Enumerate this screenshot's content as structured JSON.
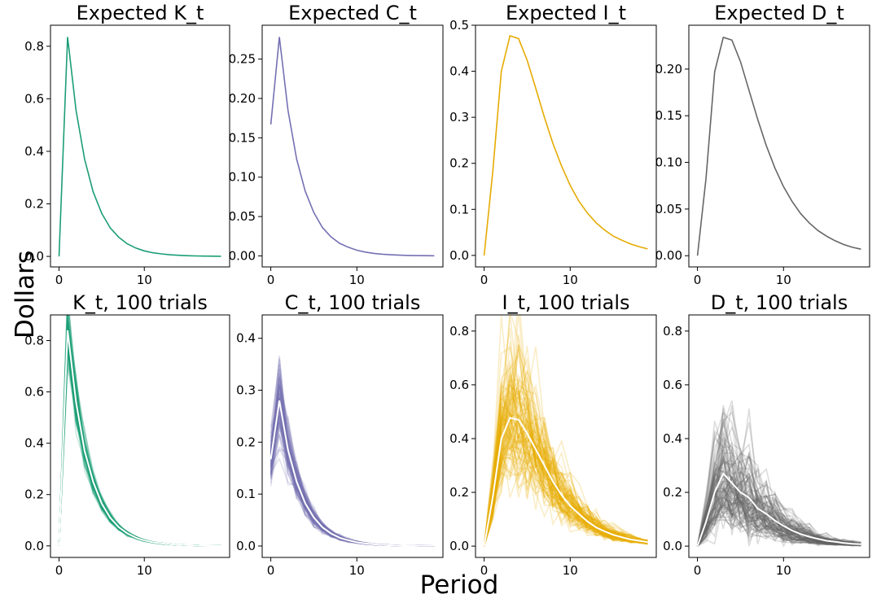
{
  "figure": {
    "supxlabel": "Period",
    "supylabel": "Dollars"
  },
  "chart_data": [
    {
      "type": "line",
      "panel": "top-1",
      "title": "Expected K_t",
      "color": "#1b9e77",
      "x": [
        0,
        1,
        2,
        3,
        4,
        5,
        6,
        7,
        8,
        9,
        10,
        11,
        12,
        13,
        14,
        15,
        16,
        17,
        18,
        19
      ],
      "ylim": [
        -0.04,
        0.88
      ],
      "xlim": [
        -1,
        20
      ],
      "yticks": [
        0.0,
        0.2,
        0.4,
        0.6,
        0.8
      ],
      "xticks": [
        0,
        10
      ],
      "ytick_labels": [
        "0.0",
        "0.2",
        "0.4",
        "0.6",
        "0.8"
      ],
      "xtick_labels": [
        "0",
        "10"
      ],
      "series": [
        {
          "name": "Expected K_t",
          "values": [
            0.0,
            0.835,
            0.556,
            0.37,
            0.246,
            0.164,
            0.109,
            0.073,
            0.048,
            0.032,
            0.021,
            0.014,
            0.0095,
            0.0063,
            0.0042,
            0.0028,
            0.0019,
            0.0012,
            0.0008,
            0.0005
          ]
        }
      ]
    },
    {
      "type": "line",
      "panel": "top-2",
      "title": "Expected C_t",
      "color": "#7570b3",
      "x": [
        0,
        1,
        2,
        3,
        4,
        5,
        6,
        7,
        8,
        9,
        10,
        11,
        12,
        13,
        14,
        15,
        16,
        17,
        18,
        19
      ],
      "ylim": [
        -0.014,
        0.293
      ],
      "xlim": [
        -1,
        20
      ],
      "yticks": [
        0.0,
        0.05,
        0.1,
        0.15,
        0.2,
        0.25
      ],
      "xticks": [
        0,
        10
      ],
      "ytick_labels": [
        "0.00",
        "0.05",
        "0.10",
        "0.15",
        "0.20",
        "0.25"
      ],
      "xtick_labels": [
        "0",
        "10"
      ],
      "series": [
        {
          "name": "Expected C_t",
          "values": [
            0.167,
            0.278,
            0.185,
            0.123,
            0.082,
            0.055,
            0.036,
            0.024,
            0.016,
            0.011,
            0.0072,
            0.0048,
            0.0032,
            0.0021,
            0.0014,
            0.0009,
            0.0006,
            0.0004,
            0.0003,
            0.0002
          ]
        }
      ]
    },
    {
      "type": "line",
      "panel": "top-3",
      "title": "Expected I_t",
      "color": "#e6ab02",
      "x": [
        0,
        1,
        2,
        3,
        4,
        5,
        6,
        7,
        8,
        9,
        10,
        11,
        12,
        13,
        14,
        15,
        16,
        17,
        18,
        19
      ],
      "ylim": [
        -0.025,
        0.5
      ],
      "xlim": [
        -1,
        20
      ],
      "yticks": [
        0.0,
        0.1,
        0.2,
        0.3,
        0.4,
        0.5
      ],
      "xticks": [
        0,
        10
      ],
      "ytick_labels": [
        "0.0",
        "0.1",
        "0.2",
        "0.3",
        "0.4",
        "0.5"
      ],
      "xtick_labels": [
        "0",
        "10"
      ],
      "series": [
        {
          "name": "Expected I_t",
          "values": [
            0.0,
            0.18,
            0.4,
            0.477,
            0.471,
            0.424,
            0.363,
            0.3,
            0.243,
            0.194,
            0.152,
            0.118,
            0.092,
            0.071,
            0.055,
            0.042,
            0.033,
            0.025,
            0.019,
            0.014
          ]
        }
      ]
    },
    {
      "type": "line",
      "panel": "top-4",
      "title": "Expected D_t",
      "color": "#666666",
      "x": [
        0,
        1,
        2,
        3,
        4,
        5,
        6,
        7,
        8,
        9,
        10,
        11,
        12,
        13,
        14,
        15,
        16,
        17,
        18,
        19
      ],
      "ylim": [
        -0.012,
        0.247
      ],
      "xlim": [
        -1,
        20
      ],
      "yticks": [
        0.0,
        0.05,
        0.1,
        0.15,
        0.2
      ],
      "xticks": [
        0,
        10
      ],
      "ytick_labels": [
        "0.00",
        "0.05",
        "0.10",
        "0.15",
        "0.20"
      ],
      "xtick_labels": [
        "0",
        "10"
      ],
      "series": [
        {
          "name": "Expected D_t",
          "values": [
            0.0,
            0.083,
            0.197,
            0.234,
            0.231,
            0.208,
            0.177,
            0.146,
            0.118,
            0.094,
            0.074,
            0.058,
            0.045,
            0.035,
            0.027,
            0.021,
            0.016,
            0.012,
            0.009,
            0.007
          ]
        }
      ]
    },
    {
      "type": "line",
      "panel": "bottom-1",
      "title": "K_t, 100 trials",
      "color": "#1b9e77",
      "trials": 100,
      "x": [
        0,
        1,
        2,
        3,
        4,
        5,
        6,
        7,
        8,
        9,
        10,
        11,
        12,
        13,
        14,
        15,
        16,
        17,
        18,
        19
      ],
      "ylim": [
        -0.045,
        0.9
      ],
      "xlim": [
        -1,
        20
      ],
      "yticks": [
        0.0,
        0.2,
        0.4,
        0.6,
        0.8
      ],
      "xticks": [
        0,
        10
      ],
      "ytick_labels": [
        "0.0",
        "0.2",
        "0.4",
        "0.6",
        "0.8"
      ],
      "xtick_labels": [
        "0",
        "10"
      ],
      "series": [
        {
          "name": "mean",
          "values": [
            0.0,
            0.84,
            0.56,
            0.37,
            0.25,
            0.165,
            0.11,
            0.073,
            0.049,
            0.032,
            0.021,
            0.014,
            0.0095,
            0.0063,
            0.0042,
            0.0028,
            0.0019,
            0.0012,
            0.0008,
            0.0005
          ]
        }
      ],
      "trial_spread": 0.1
    },
    {
      "type": "line",
      "panel": "bottom-2",
      "title": "C_t, 100 trials",
      "color": "#7570b3",
      "trials": 100,
      "x": [
        0,
        1,
        2,
        3,
        4,
        5,
        6,
        7,
        8,
        9,
        10,
        11,
        12,
        13,
        14,
        15,
        16,
        17,
        18,
        19
      ],
      "ylim": [
        -0.022,
        0.445
      ],
      "xlim": [
        -1,
        20
      ],
      "yticks": [
        0.0,
        0.1,
        0.2,
        0.3,
        0.4
      ],
      "xticks": [
        0,
        10
      ],
      "ytick_labels": [
        "0.0",
        "0.1",
        "0.2",
        "0.3",
        "0.4"
      ],
      "xtick_labels": [
        "0",
        "10"
      ],
      "series": [
        {
          "name": "mean",
          "values": [
            0.167,
            0.28,
            0.185,
            0.124,
            0.082,
            0.055,
            0.036,
            0.024,
            0.016,
            0.011,
            0.0072,
            0.0048,
            0.0032,
            0.0021,
            0.0014,
            0.0009,
            0.0006,
            0.0004,
            0.0003,
            0.0002
          ]
        }
      ],
      "trial_spread": 0.18
    },
    {
      "type": "line",
      "panel": "bottom-3",
      "title": "I_t, 100 trials",
      "color": "#e6ab02",
      "trials": 100,
      "x": [
        0,
        1,
        2,
        3,
        4,
        5,
        6,
        7,
        8,
        9,
        10,
        11,
        12,
        13,
        14,
        15,
        16,
        17,
        18,
        19
      ],
      "ylim": [
        -0.042,
        0.86
      ],
      "xlim": [
        -1,
        20
      ],
      "yticks": [
        0.0,
        0.2,
        0.4,
        0.6,
        0.8
      ],
      "xticks": [
        0,
        10
      ],
      "ytick_labels": [
        "0.0",
        "0.2",
        "0.4",
        "0.6",
        "0.8"
      ],
      "xtick_labels": [
        "0",
        "10"
      ],
      "series": [
        {
          "name": "mean",
          "values": [
            0.0,
            0.18,
            0.4,
            0.477,
            0.47,
            0.42,
            0.36,
            0.3,
            0.24,
            0.19,
            0.15,
            0.12,
            0.092,
            0.07,
            0.055,
            0.042,
            0.033,
            0.025,
            0.02,
            0.015
          ]
        }
      ],
      "trial_spread": 0.35
    },
    {
      "type": "line",
      "panel": "bottom-4",
      "title": "D_t, 100 trials",
      "color": "#666666",
      "trials": 100,
      "x": [
        0,
        1,
        2,
        3,
        4,
        5,
        6,
        7,
        8,
        9,
        10,
        11,
        12,
        13,
        14,
        15,
        16,
        17,
        18,
        19
      ],
      "ylim": [
        -0.042,
        0.86
      ],
      "xlim": [
        -1,
        20
      ],
      "yticks": [
        0.0,
        0.2,
        0.4,
        0.6,
        0.8
      ],
      "xticks": [
        0,
        10
      ],
      "ytick_labels": [
        "0.0",
        "0.2",
        "0.4",
        "0.6",
        "0.8"
      ],
      "xtick_labels": [
        "0",
        "10"
      ],
      "series": [
        {
          "name": "mean",
          "values": [
            0.0,
            0.09,
            0.2,
            0.27,
            0.235,
            0.2,
            0.18,
            0.14,
            0.12,
            0.095,
            0.075,
            0.058,
            0.045,
            0.035,
            0.027,
            0.02,
            0.016,
            0.012,
            0.009,
            0.007
          ]
        }
      ],
      "trial_spread": 0.55
    }
  ]
}
